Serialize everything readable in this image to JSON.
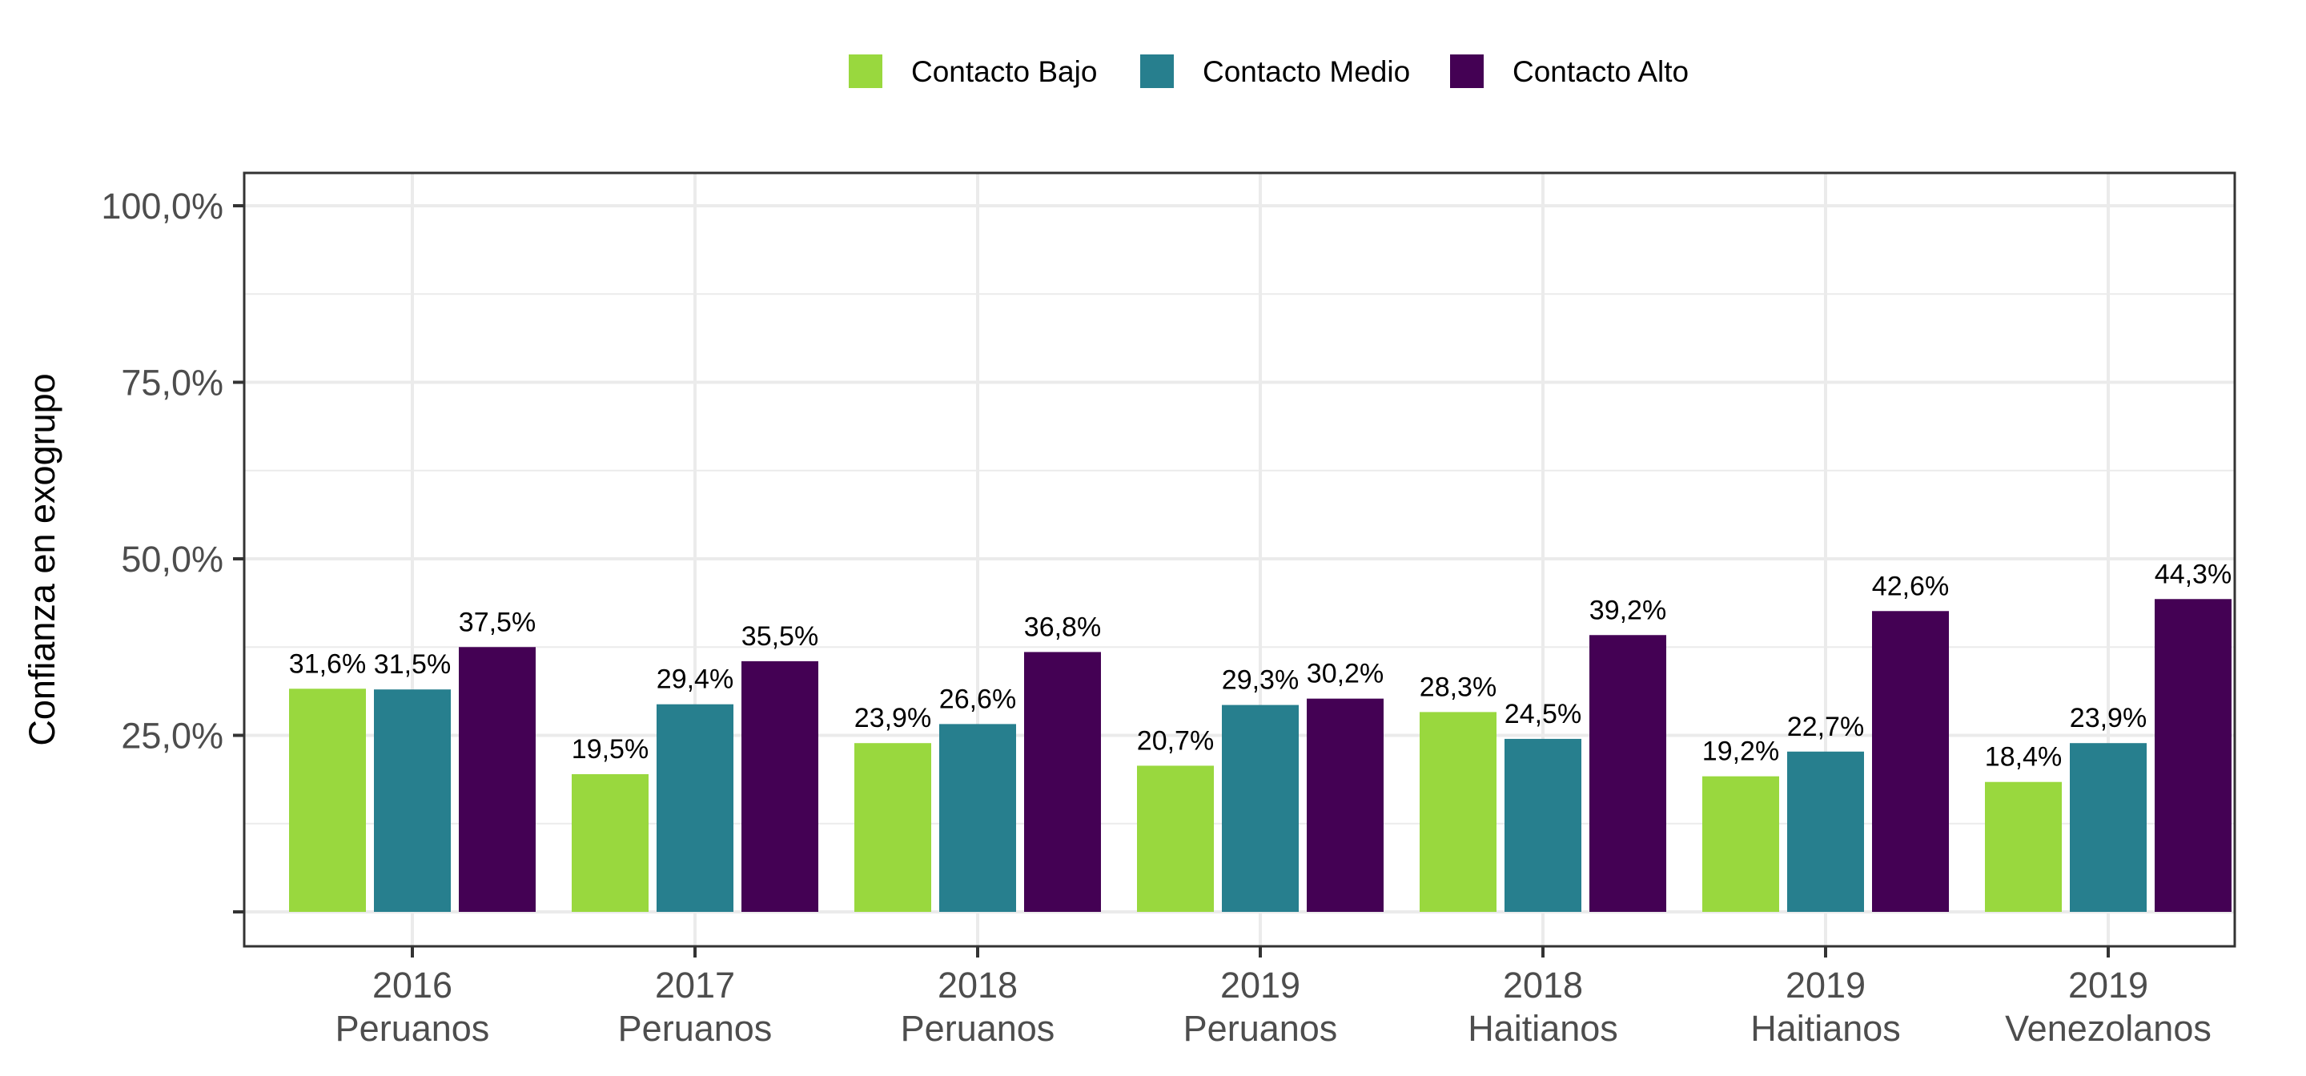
{
  "chart_data": {
    "type": "bar",
    "ylabel": "Confianza en exogrupo",
    "xlabel": "",
    "ylim": [
      0,
      100
    ],
    "yticks": [
      25,
      50,
      75,
      100
    ],
    "ytick_labels": [
      "25,0%",
      "50,0%",
      "75,0%",
      "100,0%"
    ],
    "categories": [
      {
        "year": "2016",
        "group": "Peruanos"
      },
      {
        "year": "2017",
        "group": "Peruanos"
      },
      {
        "year": "2018",
        "group": "Peruanos"
      },
      {
        "year": "2019",
        "group": "Peruanos"
      },
      {
        "year": "2018",
        "group": "Haitianos"
      },
      {
        "year": "2019",
        "group": "Haitianos"
      },
      {
        "year": "2019",
        "group": "Venezolanos"
      }
    ],
    "series": [
      {
        "name": "Contacto Bajo",
        "color": "#99d83e",
        "values": [
          31.6,
          19.5,
          23.9,
          20.7,
          28.3,
          19.2,
          18.4
        ],
        "labels": [
          "31,6%",
          "19,5%",
          "23,9%",
          "20,7%",
          "28,3%",
          "19,2%",
          "18,4%"
        ]
      },
      {
        "name": "Contacto Medio",
        "color": "#277f8e",
        "values": [
          31.5,
          29.4,
          26.6,
          29.3,
          24.5,
          22.7,
          23.9
        ],
        "labels": [
          "31,5%",
          "29,4%",
          "26,6%",
          "29,3%",
          "24,5%",
          "22,7%",
          "23,9%"
        ]
      },
      {
        "name": "Contacto Alto",
        "color": "#440154",
        "values": [
          37.5,
          35.5,
          36.8,
          30.2,
          39.2,
          42.6,
          44.3
        ],
        "labels": [
          "37,5%",
          "35,5%",
          "36,8%",
          "30,2%",
          "39,2%",
          "42,6%",
          "44,3%"
        ]
      }
    ],
    "grid": true,
    "legend_position": "top"
  }
}
